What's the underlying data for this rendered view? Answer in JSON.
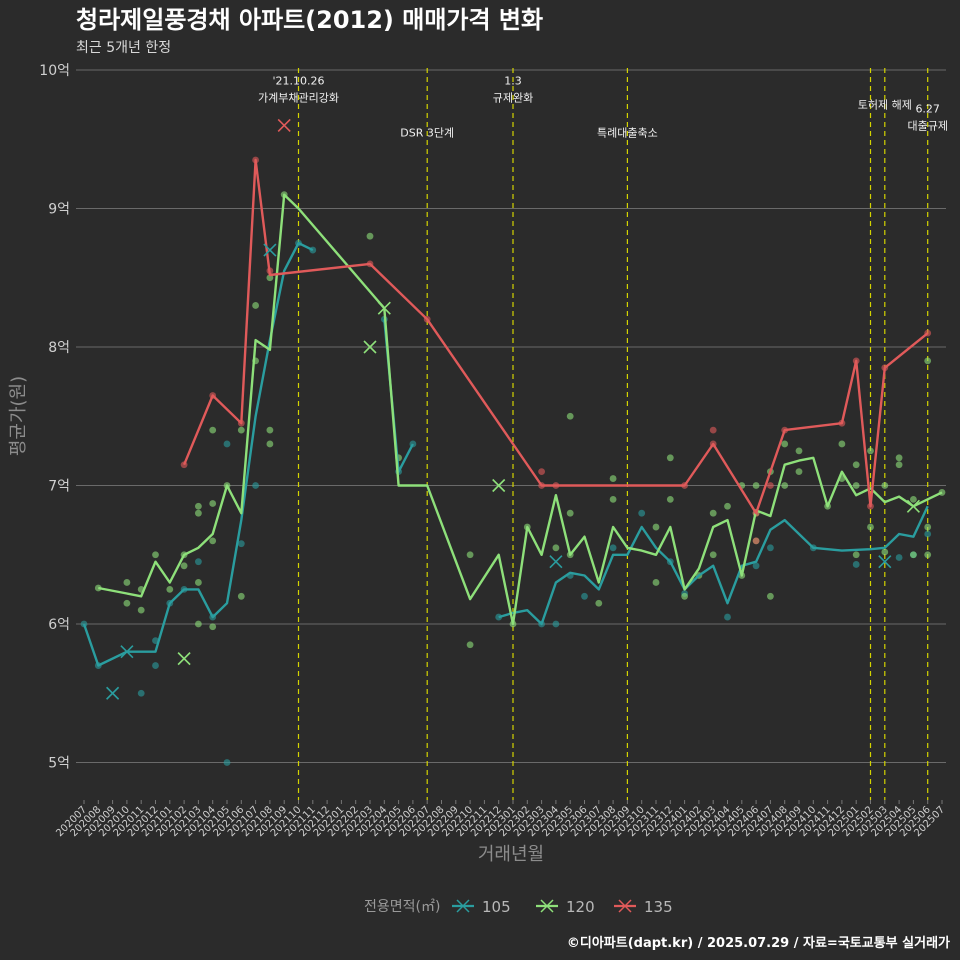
{
  "chart_data": {
    "type": "line",
    "title": "청라제일풍경채 아파트(2012) 매매가격 변화",
    "subtitle": "최근 5개년 한정",
    "xlabel": "거래년월",
    "ylabel": "평균가(원)",
    "ylim": [
      4.8,
      10
    ],
    "yticks": [
      {
        "value": 5,
        "label": "5억"
      },
      {
        "value": 6,
        "label": "6억"
      },
      {
        "value": 7,
        "label": "7억"
      },
      {
        "value": 8,
        "label": "8억"
      },
      {
        "value": 9,
        "label": "9억"
      },
      {
        "value": 10,
        "label": "10억"
      }
    ],
    "categories": [
      "202007",
      "202008",
      "202009",
      "202010",
      "202011",
      "202012",
      "202101",
      "202102",
      "202103",
      "202104",
      "202105",
      "202106",
      "202107",
      "202108",
      "202109",
      "202110",
      "202111",
      "202112",
      "202201",
      "202202",
      "202203",
      "202204",
      "202205",
      "202206",
      "202207",
      "202208",
      "202209",
      "202210",
      "202211",
      "202212",
      "202301",
      "202302",
      "202303",
      "202304",
      "202305",
      "202306",
      "202307",
      "202308",
      "202309",
      "202310",
      "202311",
      "202312",
      "202401",
      "202402",
      "202403",
      "202404",
      "202405",
      "202406",
      "202407",
      "202408",
      "202409",
      "202410",
      "202411",
      "202412",
      "202501",
      "202502",
      "202503",
      "202504",
      "202505",
      "202506",
      "202507"
    ],
    "legend": {
      "title": "전용면적(㎡)",
      "placement": "bottom"
    },
    "series": [
      {
        "name": "105",
        "color": "#2a9d9f",
        "line": [
          [
            0,
            6.0
          ],
          [
            1,
            5.7
          ],
          [
            3,
            5.8
          ],
          [
            4,
            5.8
          ],
          [
            5,
            5.8
          ],
          [
            6,
            6.15
          ],
          [
            7,
            6.25
          ],
          [
            8,
            6.25
          ],
          [
            9,
            6.05
          ],
          [
            10,
            6.15
          ],
          [
            11,
            6.75
          ],
          [
            12,
            7.5
          ],
          [
            13,
            8.05
          ],
          [
            14,
            8.55
          ],
          [
            15,
            8.75
          ],
          [
            16,
            8.7
          ],
          [
            null,
            null
          ],
          [
            21,
            8.2
          ],
          [
            22,
            7.1
          ],
          [
            23,
            7.3
          ],
          [
            null,
            null
          ],
          [
            29,
            6.05
          ],
          [
            30,
            6.08
          ],
          [
            31,
            6.1
          ],
          [
            32,
            6.0
          ],
          [
            33,
            6.3
          ],
          [
            34,
            6.37
          ],
          [
            35,
            6.35
          ],
          [
            36,
            6.25
          ],
          [
            37,
            6.5
          ],
          [
            38,
            6.5
          ],
          [
            39,
            6.7
          ],
          [
            40,
            6.55
          ],
          [
            41,
            6.45
          ],
          [
            42,
            6.25
          ],
          [
            43,
            6.35
          ],
          [
            44,
            6.42
          ],
          [
            45,
            6.15
          ],
          [
            46,
            6.42
          ],
          [
            47,
            6.45
          ],
          [
            48,
            6.68
          ],
          [
            49,
            6.75
          ],
          [
            51,
            6.55
          ],
          [
            53,
            6.53
          ],
          [
            55,
            6.54
          ],
          [
            56,
            6.55
          ],
          [
            57,
            6.65
          ],
          [
            58,
            6.63
          ],
          [
            59,
            6.85
          ]
        ],
        "crosses": [
          [
            2,
            5.5
          ],
          [
            3,
            5.8
          ],
          [
            13,
            8.7
          ],
          [
            33,
            6.45
          ],
          [
            56,
            6.45
          ]
        ],
        "dots": [
          [
            0,
            6.0
          ],
          [
            1,
            5.7
          ],
          [
            4,
            5.5
          ],
          [
            5,
            5.7
          ],
          [
            5,
            5.88
          ],
          [
            6,
            6.15
          ],
          [
            7,
            6.25
          ],
          [
            8,
            6.45
          ],
          [
            9,
            6.05
          ],
          [
            10,
            5.0
          ],
          [
            10,
            7.3
          ],
          [
            11,
            6.58
          ],
          [
            12,
            7.0
          ],
          [
            15,
            8.75
          ],
          [
            16,
            8.7
          ],
          [
            21,
            8.2
          ],
          [
            22,
            7.1
          ],
          [
            23,
            7.3
          ],
          [
            29,
            6.05
          ],
          [
            32,
            6.0
          ],
          [
            33,
            6.0
          ],
          [
            34,
            6.35
          ],
          [
            35,
            6.2
          ],
          [
            37,
            6.55
          ],
          [
            39,
            6.8
          ],
          [
            41,
            6.45
          ],
          [
            42,
            6.22
          ],
          [
            45,
            6.05
          ],
          [
            47,
            6.42
          ],
          [
            48,
            6.55
          ],
          [
            51,
            6.55
          ],
          [
            54,
            6.43
          ],
          [
            57,
            6.48
          ],
          [
            58,
            6.5
          ],
          [
            59,
            6.65
          ]
        ]
      },
      {
        "name": "120",
        "color": "#8ee07a",
        "line": [
          [
            1,
            6.26
          ],
          [
            3,
            6.22
          ],
          [
            4,
            6.2
          ],
          [
            5,
            6.45
          ],
          [
            6,
            6.3
          ],
          [
            7,
            6.5
          ],
          [
            8,
            6.55
          ],
          [
            9,
            6.65
          ],
          [
            10,
            7.0
          ],
          [
            11,
            6.8
          ],
          [
            12,
            8.05
          ],
          [
            13,
            7.98
          ],
          [
            14,
            9.1
          ],
          [
            15,
            9.0
          ],
          [
            20,
            8.4
          ],
          [
            21,
            8.28
          ],
          [
            22,
            7.0
          ],
          [
            24,
            7.0
          ],
          [
            27,
            6.18
          ],
          [
            29,
            6.5
          ],
          [
            30,
            6.0
          ],
          [
            31,
            6.7
          ],
          [
            32,
            6.5
          ],
          [
            33,
            6.93
          ],
          [
            34,
            6.5
          ],
          [
            35,
            6.63
          ],
          [
            36,
            6.3
          ],
          [
            37,
            6.7
          ],
          [
            38,
            6.55
          ],
          [
            39,
            6.53
          ],
          [
            40,
            6.5
          ],
          [
            41,
            6.7
          ],
          [
            42,
            6.25
          ],
          [
            43,
            6.4
          ],
          [
            44,
            6.7
          ],
          [
            45,
            6.75
          ],
          [
            46,
            6.35
          ],
          [
            47,
            6.82
          ],
          [
            48,
            6.78
          ],
          [
            49,
            7.15
          ],
          [
            50,
            7.18
          ],
          [
            51,
            7.2
          ],
          [
            52,
            6.85
          ],
          [
            53,
            7.1
          ],
          [
            54,
            6.93
          ],
          [
            55,
            6.98
          ],
          [
            56,
            6.88
          ],
          [
            57,
            6.92
          ],
          [
            58,
            6.85
          ],
          [
            59,
            6.9
          ],
          [
            60,
            6.95
          ]
        ],
        "crosses": [
          [
            7,
            5.75
          ],
          [
            20,
            8.0
          ],
          [
            21,
            8.28
          ],
          [
            29,
            7.0
          ],
          [
            58,
            6.85
          ]
        ],
        "dots": [
          [
            1,
            6.26
          ],
          [
            3,
            6.3
          ],
          [
            3,
            6.15
          ],
          [
            4,
            6.25
          ],
          [
            4,
            6.1
          ],
          [
            5,
            6.5
          ],
          [
            6,
            6.25
          ],
          [
            7,
            6.42
          ],
          [
            7,
            6.5
          ],
          [
            8,
            6.85
          ],
          [
            8,
            6.8
          ],
          [
            8,
            6.3
          ],
          [
            8,
            6.0
          ],
          [
            9,
            7.4
          ],
          [
            9,
            6.87
          ],
          [
            9,
            6.6
          ],
          [
            9,
            5.98
          ],
          [
            10,
            7.0
          ],
          [
            11,
            6.2
          ],
          [
            11,
            7.4
          ],
          [
            12,
            8.3
          ],
          [
            12,
            7.9
          ],
          [
            13,
            7.4
          ],
          [
            13,
            7.3
          ],
          [
            13,
            8.5
          ],
          [
            14,
            9.1
          ],
          [
            20,
            8.8
          ],
          [
            22,
            7.2
          ],
          [
            27,
            6.5
          ],
          [
            27,
            5.85
          ],
          [
            30,
            6.0
          ],
          [
            31,
            6.7
          ],
          [
            33,
            6.55
          ],
          [
            34,
            7.5
          ],
          [
            34,
            6.8
          ],
          [
            34,
            6.5
          ],
          [
            36,
            6.15
          ],
          [
            37,
            6.9
          ],
          [
            37,
            7.05
          ],
          [
            40,
            6.7
          ],
          [
            40,
            6.3
          ],
          [
            41,
            6.9
          ],
          [
            41,
            7.2
          ],
          [
            42,
            6.2
          ],
          [
            43,
            6.35
          ],
          [
            44,
            6.8
          ],
          [
            44,
            6.5
          ],
          [
            45,
            6.85
          ],
          [
            46,
            7.0
          ],
          [
            46,
            6.35
          ],
          [
            47,
            7.0
          ],
          [
            47,
            6.8
          ],
          [
            47,
            6.6
          ],
          [
            48,
            6.2
          ],
          [
            48,
            7.1
          ],
          [
            49,
            7.3
          ],
          [
            49,
            7.0
          ],
          [
            50,
            7.25
          ],
          [
            50,
            7.1
          ],
          [
            52,
            6.85
          ],
          [
            53,
            7.3
          ],
          [
            53,
            7.05
          ],
          [
            54,
            7.15
          ],
          [
            54,
            7.0
          ],
          [
            54,
            6.5
          ],
          [
            55,
            7.25
          ],
          [
            55,
            6.7
          ],
          [
            56,
            7.0
          ],
          [
            56,
            6.52
          ],
          [
            57,
            7.2
          ],
          [
            57,
            7.15
          ],
          [
            58,
            6.9
          ],
          [
            58,
            6.5
          ],
          [
            59,
            7.9
          ],
          [
            59,
            6.5
          ],
          [
            59,
            6.7
          ],
          [
            60,
            6.95
          ]
        ]
      },
      {
        "name": "135",
        "color": "#e05a5a",
        "line": [
          [
            7,
            7.15
          ],
          [
            9,
            7.65
          ],
          [
            11,
            7.45
          ],
          [
            12,
            9.35
          ],
          [
            13,
            8.52
          ],
          [
            20,
            8.6
          ],
          [
            24,
            8.2
          ],
          [
            32,
            7.0
          ],
          [
            33,
            7.0
          ],
          [
            42,
            7.0
          ],
          [
            44,
            7.3
          ],
          [
            47,
            6.8
          ],
          [
            49,
            7.4
          ],
          [
            53,
            7.45
          ],
          [
            54,
            7.9
          ],
          [
            55,
            6.85
          ],
          [
            56,
            7.85
          ],
          [
            59,
            8.1
          ]
        ],
        "crosses": [
          [
            14,
            9.6
          ]
        ],
        "dots": [
          [
            7,
            7.15
          ],
          [
            9,
            7.65
          ],
          [
            11,
            7.45
          ],
          [
            12,
            9.35
          ],
          [
            13,
            8.55
          ],
          [
            20,
            8.6
          ],
          [
            24,
            8.2
          ],
          [
            32,
            7.1
          ],
          [
            32,
            7.0
          ],
          [
            33,
            7.0
          ],
          [
            42,
            7.0
          ],
          [
            44,
            7.3
          ],
          [
            44,
            7.4
          ],
          [
            47,
            6.6
          ],
          [
            47,
            6.8
          ],
          [
            48,
            7.0
          ],
          [
            49,
            7.4
          ],
          [
            53,
            7.45
          ],
          [
            54,
            7.9
          ],
          [
            55,
            6.85
          ],
          [
            56,
            7.85
          ],
          [
            59,
            8.1
          ]
        ]
      }
    ],
    "events": [
      {
        "x": 15,
        "lines": [
          "'21.10.26",
          "가계부채관리강화"
        ],
        "label_y": 9.8
      },
      {
        "x": 24,
        "lines": [
          "DSR 3단계"
        ],
        "label_y": 9.55
      },
      {
        "x": 30,
        "lines": [
          "1.3",
          "규제완화"
        ],
        "label_y": 9.8
      },
      {
        "x": 38,
        "lines": [
          "특례대출축소"
        ],
        "label_y": 9.55
      },
      {
        "x": 55,
        "lines": [],
        "label_y": 9.75
      },
      {
        "x": 56,
        "lines": [
          "토허제 해제"
        ],
        "label_y": 9.75
      },
      {
        "x": 59,
        "lines": [
          "6.27",
          "대출규제"
        ],
        "label_y": 9.6
      }
    ]
  },
  "caption": "©디아파트(dapt.kr) / 2025.07.29 / 자료=국토교통부 실거래가"
}
